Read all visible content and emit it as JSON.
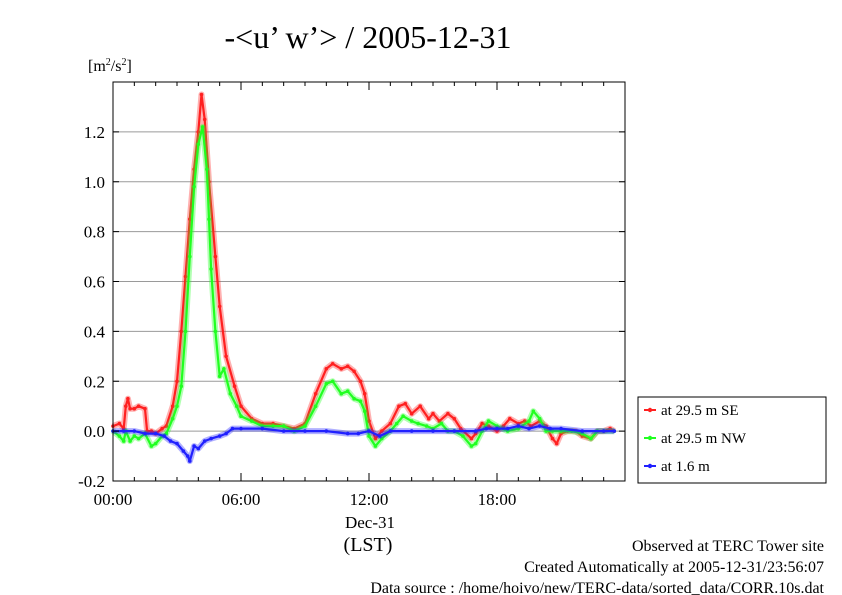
{
  "chart_data": {
    "type": "line",
    "title": "-<u’ w’> / 2005-12-31",
    "yunit_base": "[m",
    "yunit_sup1": "2",
    "yunit_mid": "/s",
    "yunit_sup2": "2",
    "yunit_end": "]",
    "xlabel_date": "Dec-31",
    "xlabel_unit": "(LST)",
    "xlim": [
      0,
      24
    ],
    "ylim": [
      -0.2,
      1.4
    ],
    "yticks": [
      -0.2,
      0.0,
      0.2,
      0.4,
      0.6,
      0.8,
      1.0,
      1.2
    ],
    "ytick_labels": [
      "-0.2",
      "0.0",
      "0.2",
      "0.4",
      "0.6",
      "0.8",
      "1.0",
      "1.2"
    ],
    "xticks": [
      0,
      6,
      12,
      18
    ],
    "xtick_labels": [
      "00:00",
      "06:00",
      "12:00",
      "18:00"
    ],
    "grid": true,
    "legend_position": "right",
    "series": [
      {
        "name": "at 29.5 m SE",
        "color": "#ff2020",
        "points": [
          [
            0,
            0.02
          ],
          [
            0.3,
            0.03
          ],
          [
            0.5,
            0.01
          ],
          [
            0.6,
            0.1
          ],
          [
            0.7,
            0.13
          ],
          [
            0.8,
            0.09
          ],
          [
            1.0,
            0.09
          ],
          [
            1.2,
            0.1
          ],
          [
            1.5,
            0.09
          ],
          [
            1.6,
            0.0
          ],
          [
            1.8,
            0.0
          ],
          [
            2.0,
            -0.01
          ],
          [
            2.3,
            0.01
          ],
          [
            2.5,
            0.02
          ],
          [
            2.8,
            0.1
          ],
          [
            3.0,
            0.2
          ],
          [
            3.2,
            0.4
          ],
          [
            3.4,
            0.62
          ],
          [
            3.6,
            0.85
          ],
          [
            3.8,
            1.05
          ],
          [
            4.0,
            1.2
          ],
          [
            4.15,
            1.35
          ],
          [
            4.3,
            1.25
          ],
          [
            4.5,
            1.0
          ],
          [
            4.8,
            0.7
          ],
          [
            5.0,
            0.5
          ],
          [
            5.3,
            0.3
          ],
          [
            5.7,
            0.18
          ],
          [
            6.0,
            0.1
          ],
          [
            6.5,
            0.05
          ],
          [
            7.0,
            0.03
          ],
          [
            7.5,
            0.03
          ],
          [
            8.0,
            0.02
          ],
          [
            8.5,
            0.01
          ],
          [
            9.0,
            0.03
          ],
          [
            9.5,
            0.15
          ],
          [
            10.0,
            0.25
          ],
          [
            10.3,
            0.27
          ],
          [
            10.7,
            0.25
          ],
          [
            11.0,
            0.26
          ],
          [
            11.3,
            0.24
          ],
          [
            11.6,
            0.2
          ],
          [
            11.8,
            0.15
          ],
          [
            12.0,
            0.04
          ],
          [
            12.3,
            -0.03
          ],
          [
            12.6,
            0.0
          ],
          [
            13.0,
            0.03
          ],
          [
            13.4,
            0.1
          ],
          [
            13.7,
            0.11
          ],
          [
            14.0,
            0.07
          ],
          [
            14.4,
            0.1
          ],
          [
            14.8,
            0.05
          ],
          [
            15.0,
            0.07
          ],
          [
            15.3,
            0.04
          ],
          [
            15.7,
            0.07
          ],
          [
            16.0,
            0.05
          ],
          [
            16.3,
            0.01
          ],
          [
            16.8,
            -0.03
          ],
          [
            17.0,
            -0.01
          ],
          [
            17.3,
            0.03
          ],
          [
            17.6,
            0.02
          ],
          [
            18.0,
            0.0
          ],
          [
            18.3,
            0.02
          ],
          [
            18.6,
            0.05
          ],
          [
            19.0,
            0.03
          ],
          [
            19.3,
            0.04
          ],
          [
            19.6,
            0.02
          ],
          [
            20.0,
            0.04
          ],
          [
            20.3,
            0.02
          ],
          [
            20.6,
            -0.03
          ],
          [
            20.8,
            -0.05
          ],
          [
            21.0,
            -0.01
          ],
          [
            21.3,
            0.0
          ],
          [
            21.7,
            0.0
          ],
          [
            22.0,
            -0.02
          ],
          [
            22.4,
            -0.03
          ],
          [
            22.7,
            0.0
          ],
          [
            23.0,
            0.0
          ],
          [
            23.3,
            0.01
          ],
          [
            23.5,
            0.0
          ]
        ]
      },
      {
        "name": "at 29.5 m NW",
        "color": "#20ff20",
        "points": [
          [
            0,
            0.0
          ],
          [
            0.3,
            -0.02
          ],
          [
            0.5,
            -0.04
          ],
          [
            0.6,
            0.0
          ],
          [
            0.8,
            -0.04
          ],
          [
            1.0,
            -0.02
          ],
          [
            1.2,
            -0.03
          ],
          [
            1.5,
            -0.01
          ],
          [
            1.8,
            -0.06
          ],
          [
            2.0,
            -0.05
          ],
          [
            2.3,
            -0.02
          ],
          [
            2.5,
            -0.01
          ],
          [
            2.8,
            0.05
          ],
          [
            3.0,
            0.1
          ],
          [
            3.2,
            0.18
          ],
          [
            3.4,
            0.4
          ],
          [
            3.6,
            0.7
          ],
          [
            3.8,
            0.98
          ],
          [
            4.0,
            1.15
          ],
          [
            4.2,
            1.22
          ],
          [
            4.4,
            1.05
          ],
          [
            4.5,
            0.85
          ],
          [
            4.6,
            0.65
          ],
          [
            4.8,
            0.4
          ],
          [
            5.0,
            0.22
          ],
          [
            5.2,
            0.25
          ],
          [
            5.5,
            0.15
          ],
          [
            5.8,
            0.1
          ],
          [
            6.0,
            0.06
          ],
          [
            6.5,
            0.04
          ],
          [
            7.0,
            0.02
          ],
          [
            7.5,
            0.02
          ],
          [
            8.0,
            0.02
          ],
          [
            8.5,
            0.0
          ],
          [
            9.0,
            0.02
          ],
          [
            9.5,
            0.1
          ],
          [
            10.0,
            0.19
          ],
          [
            10.3,
            0.2
          ],
          [
            10.7,
            0.15
          ],
          [
            11.0,
            0.16
          ],
          [
            11.3,
            0.13
          ],
          [
            11.6,
            0.12
          ],
          [
            11.8,
            0.08
          ],
          [
            12.0,
            -0.02
          ],
          [
            12.3,
            -0.06
          ],
          [
            12.6,
            -0.03
          ],
          [
            13.0,
            0.0
          ],
          [
            13.3,
            0.03
          ],
          [
            13.6,
            0.06
          ],
          [
            14.0,
            0.04
          ],
          [
            14.3,
            0.03
          ],
          [
            14.7,
            0.02
          ],
          [
            15.0,
            0.01
          ],
          [
            15.4,
            0.03
          ],
          [
            15.7,
            0.0
          ],
          [
            16.0,
            0.0
          ],
          [
            16.4,
            -0.02
          ],
          [
            16.8,
            -0.06
          ],
          [
            17.0,
            -0.05
          ],
          [
            17.3,
            0.0
          ],
          [
            17.6,
            0.04
          ],
          [
            18.0,
            0.02
          ],
          [
            18.5,
            0.0
          ],
          [
            19.0,
            0.01
          ],
          [
            19.5,
            0.04
          ],
          [
            19.7,
            0.08
          ],
          [
            20.0,
            0.05
          ],
          [
            20.3,
            0.0
          ],
          [
            20.6,
            0.0
          ],
          [
            21.0,
            0.0
          ],
          [
            21.5,
            0.0
          ],
          [
            22.0,
            -0.01
          ],
          [
            22.4,
            -0.03
          ],
          [
            22.7,
            0.0
          ],
          [
            23.0,
            0.0
          ],
          [
            23.5,
            0.0
          ]
        ]
      },
      {
        "name": "at 1.6 m",
        "color": "#2020ff",
        "points": [
          [
            0,
            0.0
          ],
          [
            0.5,
            0.0
          ],
          [
            1.0,
            0.0
          ],
          [
            1.5,
            -0.01
          ],
          [
            2.0,
            -0.01
          ],
          [
            2.4,
            -0.02
          ],
          [
            2.7,
            -0.04
          ],
          [
            3.0,
            -0.05
          ],
          [
            3.3,
            -0.08
          ],
          [
            3.5,
            -0.1
          ],
          [
            3.6,
            -0.12
          ],
          [
            3.8,
            -0.06
          ],
          [
            4.0,
            -0.07
          ],
          [
            4.3,
            -0.04
          ],
          [
            4.6,
            -0.03
          ],
          [
            5.0,
            -0.02
          ],
          [
            5.3,
            -0.01
          ],
          [
            5.6,
            0.01
          ],
          [
            6.0,
            0.01
          ],
          [
            7.0,
            0.01
          ],
          [
            8.0,
            0.0
          ],
          [
            9.0,
            0.0
          ],
          [
            10.0,
            0.0
          ],
          [
            11.0,
            -0.01
          ],
          [
            11.5,
            -0.01
          ],
          [
            12.0,
            0.0
          ],
          [
            12.5,
            -0.02
          ],
          [
            13.0,
            0.0
          ],
          [
            14.0,
            0.0
          ],
          [
            15.0,
            0.0
          ],
          [
            16.0,
            0.0
          ],
          [
            17.0,
            0.0
          ],
          [
            17.5,
            0.01
          ],
          [
            18.0,
            0.01
          ],
          [
            18.5,
            0.01
          ],
          [
            19.0,
            0.02
          ],
          [
            19.5,
            0.01
          ],
          [
            20.0,
            0.02
          ],
          [
            20.5,
            0.01
          ],
          [
            21.0,
            0.01
          ],
          [
            22.0,
            0.0
          ],
          [
            23.0,
            0.0
          ],
          [
            23.5,
            0.0
          ]
        ]
      }
    ]
  },
  "footer": {
    "line1": "Observed at TERC Tower site",
    "line2": "Created Automatically at 2005-12-31/23:56:07",
    "line3": "Data source : /home/hoivo/new/TERC-data/sorted_data/CORR.10s.dat"
  }
}
